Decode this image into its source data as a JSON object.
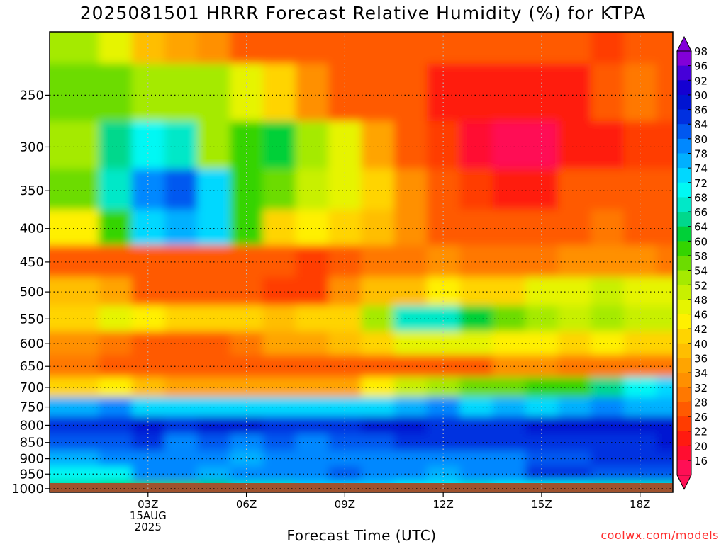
{
  "page": {
    "title": "2025081501 HRRR Forecast Relative Humidity (%) for KTPA",
    "xlabel": "Forecast Time (UTC)",
    "credit": "coolwx.com/models"
  },
  "chart_data": {
    "type": "heatmap",
    "title": "2025081501 HRRR Forecast Relative Humidity (%) for KTPA",
    "xlabel": "Forecast Time (UTC)",
    "ylabel": "",
    "x_hours": [
      1,
      2,
      3,
      4,
      5,
      6,
      7,
      8,
      9,
      10,
      11,
      12,
      13,
      14,
      15,
      16,
      17,
      18,
      19
    ],
    "x_ticks": [
      {
        "hour": 3,
        "lines": [
          "03Z",
          "15AUG",
          "2025"
        ]
      },
      {
        "hour": 6,
        "lines": [
          "06Z"
        ]
      },
      {
        "hour": 9,
        "lines": [
          "09Z"
        ]
      },
      {
        "hour": 12,
        "lines": [
          "12Z"
        ]
      },
      {
        "hour": 15,
        "lines": [
          "15Z"
        ]
      },
      {
        "hour": 18,
        "lines": [
          "18Z"
        ]
      }
    ],
    "y_scale": "log",
    "y_ticks": [
      250,
      300,
      350,
      400,
      450,
      500,
      550,
      600,
      650,
      700,
      750,
      800,
      850,
      900,
      950,
      1000
    ],
    "y_top": 200,
    "y_bottom": 1013,
    "ground_pressure": 1013,
    "levels_hpa": [
      200,
      250,
      300,
      350,
      400,
      450,
      500,
      550,
      600,
      650,
      700,
      750,
      800,
      850,
      900,
      950,
      1000
    ],
    "rh_percent": [
      [
        56,
        50,
        40,
        36,
        34,
        30,
        30,
        30,
        30,
        30,
        30,
        28,
        30,
        30,
        30,
        30,
        26,
        30,
        28
      ],
      [
        58,
        58,
        56,
        54,
        56,
        50,
        42,
        34,
        30,
        28,
        28,
        22,
        22,
        22,
        22,
        24,
        28,
        32,
        30
      ],
      [
        54,
        66,
        72,
        68,
        56,
        60,
        64,
        56,
        50,
        36,
        30,
        26,
        20,
        18,
        18,
        22,
        24,
        26,
        26
      ],
      [
        58,
        70,
        82,
        84,
        76,
        60,
        58,
        52,
        48,
        42,
        34,
        30,
        26,
        24,
        24,
        28,
        30,
        30,
        30
      ],
      [
        46,
        60,
        74,
        78,
        74,
        60,
        44,
        46,
        44,
        40,
        34,
        30,
        28,
        28,
        30,
        30,
        32,
        30,
        30
      ],
      [
        30,
        30,
        28,
        30,
        28,
        28,
        28,
        26,
        30,
        32,
        32,
        34,
        32,
        32,
        32,
        34,
        34,
        34,
        32
      ],
      [
        40,
        36,
        30,
        28,
        28,
        28,
        26,
        26,
        34,
        40,
        40,
        46,
        44,
        44,
        48,
        50,
        52,
        50,
        50
      ],
      [
        44,
        48,
        46,
        44,
        44,
        44,
        40,
        42,
        44,
        56,
        68,
        70,
        64,
        58,
        54,
        52,
        54,
        52,
        52
      ],
      [
        34,
        32,
        30,
        30,
        30,
        32,
        36,
        38,
        40,
        44,
        48,
        50,
        48,
        46,
        46,
        44,
        46,
        44,
        44
      ],
      [
        32,
        30,
        28,
        30,
        30,
        28,
        28,
        28,
        28,
        30,
        28,
        30,
        30,
        34,
        34,
        32,
        32,
        32,
        32
      ],
      [
        44,
        46,
        40,
        38,
        38,
        38,
        38,
        38,
        36,
        46,
        52,
        56,
        58,
        58,
        60,
        62,
        66,
        72,
        74
      ],
      [
        78,
        80,
        76,
        74,
        76,
        76,
        74,
        74,
        74,
        76,
        78,
        80,
        76,
        78,
        76,
        78,
        80,
        78,
        78
      ],
      [
        86,
        88,
        90,
        88,
        90,
        90,
        88,
        88,
        88,
        90,
        90,
        88,
        88,
        88,
        90,
        90,
        90,
        90,
        90
      ],
      [
        84,
        84,
        86,
        82,
        84,
        82,
        84,
        82,
        84,
        84,
        86,
        86,
        86,
        86,
        88,
        88,
        88,
        88,
        90
      ],
      [
        78,
        80,
        82,
        80,
        80,
        78,
        80,
        80,
        82,
        80,
        80,
        80,
        82,
        82,
        84,
        84,
        86,
        86,
        86
      ],
      [
        72,
        72,
        80,
        82,
        78,
        80,
        82,
        80,
        84,
        80,
        80,
        78,
        80,
        82,
        86,
        86,
        84,
        84,
        84
      ],
      [
        66,
        64,
        62,
        62,
        64,
        68,
        70,
        74,
        76,
        74,
        72,
        72,
        70,
        72,
        72,
        72,
        70,
        70,
        68
      ]
    ],
    "colorbar": {
      "labels": [
        16,
        20,
        22,
        26,
        28,
        32,
        34,
        36,
        40,
        42,
        46,
        48,
        52,
        54,
        58,
        60,
        64,
        66,
        68,
        72,
        74,
        78,
        80,
        84,
        86,
        90,
        92,
        96,
        98
      ],
      "colors": [
        "#ff0f55",
        "#ff0d30",
        "#ff1a10",
        "#ff3c00",
        "#ff5a00",
        "#ff7800",
        "#ff9000",
        "#ffa400",
        "#ffbe00",
        "#ffd400",
        "#fff000",
        "#e6f400",
        "#c8f000",
        "#a5ea00",
        "#6cdc00",
        "#34d400",
        "#00d038",
        "#00d88c",
        "#00e8c8",
        "#00f8f4",
        "#00d8ff",
        "#00b0ff",
        "#0088ff",
        "#0058f0",
        "#0030e0",
        "#0014d2",
        "#1400d2",
        "#4600d8",
        "#8200d8"
      ]
    }
  }
}
